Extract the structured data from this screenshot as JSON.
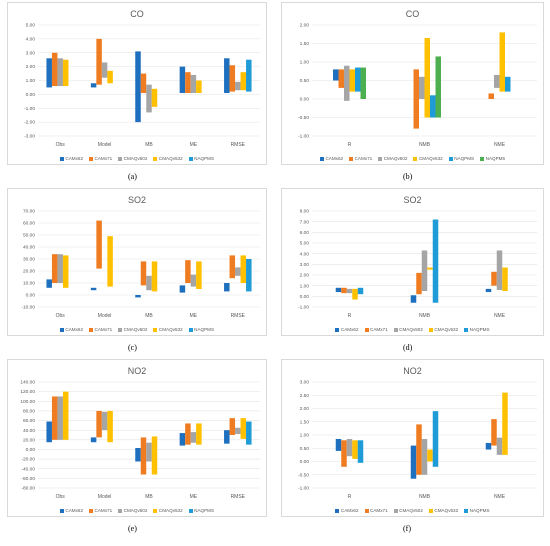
{
  "colors": [
    "#1f6fbf",
    "#f07c21",
    "#a5a5a5",
    "#ffc000",
    "#1f9bd7",
    "#4caf50"
  ],
  "chart_data": [
    {
      "type": "bar",
      "subtype": "floating",
      "title": "CO",
      "label": "(a)",
      "categories": [
        "Obs",
        "Model",
        "MB",
        "ME",
        "RMSE"
      ],
      "ylim": [
        -3,
        5
      ],
      "yticks": [
        -3,
        -2,
        -1,
        0,
        1,
        2,
        3,
        4,
        5
      ],
      "ytick_labels": [
        "-3.00",
        "-2.00",
        "-1.00",
        "0.00",
        "1.00",
        "2.00",
        "3.00",
        "4.00",
        "5.00"
      ],
      "series": [
        {
          "name": "CAMx62",
          "ranges": [
            [
              0.5,
              2.6
            ],
            [
              0.5,
              0.8
            ],
            [
              -2.0,
              3.1
            ],
            [
              0.1,
              2.0
            ],
            [
              0.1,
              2.6
            ]
          ]
        },
        {
          "name": "CAMx71",
          "ranges": [
            [
              0.6,
              3.0
            ],
            [
              0.7,
              4.0
            ],
            [
              0.1,
              1.5
            ],
            [
              0.1,
              1.6
            ],
            [
              0.2,
              2.1
            ]
          ]
        },
        {
          "name": "CMAQv502",
          "ranges": [
            [
              0.6,
              2.6
            ],
            [
              1.2,
              2.3
            ],
            [
              -1.3,
              0.7
            ],
            [
              0.1,
              1.4
            ],
            [
              0.3,
              0.9
            ]
          ]
        },
        {
          "name": "CMAQv532",
          "ranges": [
            [
              0.6,
              2.5
            ],
            [
              0.8,
              1.7
            ],
            [
              -0.9,
              0.4
            ],
            [
              0.1,
              1.0
            ],
            [
              0.3,
              1.6
            ]
          ]
        },
        {
          "name": "NAQPMS",
          "ranges": [
            null,
            null,
            null,
            null,
            [
              0.2,
              2.5
            ]
          ]
        }
      ],
      "grid": true,
      "legend": "bottom"
    },
    {
      "type": "bar",
      "subtype": "floating",
      "title": "CO",
      "label": "(b)",
      "categories": [
        "R",
        "NMB",
        "NME"
      ],
      "ylim": [
        -1,
        2
      ],
      "yticks": [
        -1,
        -0.5,
        0,
        0.5,
        1,
        1.5,
        2
      ],
      "ytick_labels": [
        "-1.00",
        "-0.50",
        "0.00",
        "0.50",
        "1.00",
        "1.50",
        "2.00"
      ],
      "series": [
        {
          "name": "CAMx62",
          "ranges": [
            [
              0.5,
              0.8
            ],
            null,
            null
          ]
        },
        {
          "name": "CAMx71",
          "ranges": [
            [
              0.3,
              0.8
            ],
            [
              -0.8,
              0.8
            ],
            [
              0.0,
              0.15
            ]
          ]
        },
        {
          "name": "CMAQv502",
          "ranges": [
            [
              -0.05,
              0.9
            ],
            [
              0.0,
              0.6
            ],
            [
              0.3,
              0.65
            ]
          ]
        },
        {
          "name": "CMAQv532",
          "ranges": [
            [
              0.2,
              0.8
            ],
            [
              -0.5,
              1.65
            ],
            [
              0.2,
              1.8
            ]
          ]
        },
        {
          "name": "NAQPMS",
          "ranges": [
            [
              0.2,
              0.85
            ],
            [
              -0.5,
              0.1
            ],
            [
              0.2,
              0.6
            ]
          ]
        },
        {
          "name": "NAQPM5",
          "ranges": [
            [
              0.0,
              0.85
            ],
            [
              -0.5,
              1.15
            ],
            null
          ]
        }
      ],
      "grid": true,
      "legend": "bottom"
    },
    {
      "type": "bar",
      "subtype": "floating",
      "title": "SO2",
      "label": "(c)",
      "categories": [
        "Obs",
        "Model",
        "MB",
        "ME",
        "RMSE"
      ],
      "ylim": [
        -10,
        70
      ],
      "yticks": [
        -10,
        0,
        10,
        20,
        30,
        40,
        50,
        60,
        70
      ],
      "ytick_labels": [
        "-10.00",
        "0.00",
        "10.00",
        "20.00",
        "30.00",
        "40.00",
        "50.00",
        "60.00",
        "70.00"
      ],
      "series": [
        {
          "name": "CAMx62",
          "ranges": [
            [
              6,
              13
            ],
            [
              4,
              6
            ],
            [
              -2,
              0
            ],
            [
              2,
              8
            ],
            [
              3,
              10
            ]
          ]
        },
        {
          "name": "CAMx71",
          "ranges": [
            [
              10,
              34
            ],
            [
              22,
              62
            ],
            [
              8,
              28
            ],
            [
              10,
              29
            ],
            [
              14,
              33
            ]
          ]
        },
        {
          "name": "CMAQv502",
          "ranges": [
            [
              10,
              34
            ],
            null,
            [
              4,
              16
            ],
            [
              7,
              17
            ],
            [
              16,
              23
            ]
          ]
        },
        {
          "name": "CMAQv532",
          "ranges": [
            [
              6,
              33
            ],
            [
              7,
              49
            ],
            [
              3,
              28
            ],
            [
              5,
              28
            ],
            [
              10,
              33
            ]
          ]
        },
        {
          "name": "NAQPMS",
          "ranges": [
            null,
            null,
            null,
            null,
            [
              3,
              30
            ]
          ]
        }
      ],
      "grid": true,
      "legend": "bottom"
    },
    {
      "type": "bar",
      "subtype": "floating",
      "title": "SO2",
      "label": "(d)",
      "categories": [
        "R",
        "NMB",
        "NME"
      ],
      "ylim": [
        -1,
        8
      ],
      "yticks": [
        -1,
        0,
        1,
        2,
        3,
        4,
        5,
        6,
        7,
        8
      ],
      "ytick_labels": [
        "-1.00",
        "0.00",
        "1.00",
        "2.00",
        "3.00",
        "4.00",
        "5.00",
        "6.00",
        "7.00",
        "8.00"
      ],
      "series": [
        {
          "name": "CAMx62",
          "ranges": [
            [
              0.4,
              0.8
            ],
            [
              -0.6,
              0.1
            ],
            [
              0.4,
              0.7
            ]
          ]
        },
        {
          "name": "CAMx71",
          "ranges": [
            [
              0.3,
              0.8
            ],
            [
              0.2,
              2.2
            ],
            [
              1.0,
              2.3
            ]
          ]
        },
        {
          "name": "CMAQv502",
          "ranges": [
            [
              0.3,
              0.7
            ],
            [
              0.5,
              4.3
            ],
            [
              0.6,
              4.3
            ]
          ]
        },
        {
          "name": "CMAQv532",
          "ranges": [
            [
              -0.3,
              0.7
            ],
            [
              2.5,
              2.7
            ],
            [
              0.5,
              2.7
            ]
          ]
        },
        {
          "name": "NAQPMS",
          "ranges": [
            [
              0.2,
              0.8
            ],
            [
              -0.6,
              7.2
            ],
            null
          ]
        }
      ],
      "grid": true,
      "legend": "bottom"
    },
    {
      "type": "bar",
      "subtype": "floating",
      "title": "NO2",
      "label": "(e)",
      "categories": [
        "Obs",
        "Model",
        "MB",
        "ME",
        "RMSE"
      ],
      "ylim": [
        -80,
        140
      ],
      "yticks": [
        -80,
        -60,
        -40,
        -20,
        0,
        20,
        40,
        60,
        80,
        100,
        120,
        140
      ],
      "ytick_labels": [
        "-80.00",
        "-60.00",
        "-40.00",
        "-20.00",
        "0.00",
        "20.00",
        "40.00",
        "60.00",
        "80.00",
        "100.00",
        "120.00",
        "140.00"
      ],
      "series": [
        {
          "name": "CAMx62",
          "ranges": [
            [
              15,
              58
            ],
            [
              15,
              25
            ],
            [
              -25,
              3
            ],
            [
              8,
              34
            ],
            [
              12,
              40
            ]
          ]
        },
        {
          "name": "CAMx71",
          "ranges": [
            [
              20,
              110
            ],
            [
              25,
              80
            ],
            [
              -52,
              25
            ],
            [
              10,
              54
            ],
            [
              30,
              65
            ]
          ]
        },
        {
          "name": "CMAQv502",
          "ranges": [
            [
              20,
              110
            ],
            [
              40,
              78
            ],
            [
              -25,
              14
            ],
            [
              14,
              36
            ],
            [
              32,
              45
            ]
          ]
        },
        {
          "name": "CMAQv532",
          "ranges": [
            [
              20,
              120
            ],
            [
              15,
              80
            ],
            [
              -52,
              27
            ],
            [
              10,
              54
            ],
            [
              22,
              65
            ]
          ]
        },
        {
          "name": "NAQPMS",
          "ranges": [
            null,
            null,
            null,
            null,
            [
              10,
              58
            ]
          ]
        }
      ],
      "grid": true,
      "legend": "bottom"
    },
    {
      "type": "bar",
      "subtype": "floating",
      "title": "NO2",
      "label": "(f)",
      "categories": [
        "R",
        "NMB",
        "NME"
      ],
      "ylim": [
        -1,
        3
      ],
      "yticks": [
        -1,
        -0.5,
        0,
        0.5,
        1,
        1.5,
        2,
        2.5,
        3
      ],
      "ytick_labels": [
        "-1.00",
        "-0.50",
        "0.00",
        "0.50",
        "1.00",
        "1.50",
        "2.00",
        "2.50",
        "3.00"
      ],
      "series": [
        {
          "name": "CAMx62",
          "ranges": [
            [
              0.4,
              0.85
            ],
            [
              -0.65,
              0.6
            ],
            [
              0.45,
              0.7
            ]
          ]
        },
        {
          "name": "CAMx71",
          "ranges": [
            [
              -0.2,
              0.8
            ],
            [
              -0.5,
              1.4
            ],
            [
              0.6,
              1.6
            ]
          ]
        },
        {
          "name": "CMAQv502",
          "ranges": [
            [
              0.2,
              0.85
            ],
            [
              -0.5,
              0.85
            ],
            [
              0.25,
              0.9
            ]
          ]
        },
        {
          "name": "CMAQv532",
          "ranges": [
            [
              0.1,
              0.8
            ],
            [
              0.0,
              0.45
            ],
            [
              0.25,
              2.6
            ]
          ]
        },
        {
          "name": "NAQPMS",
          "ranges": [
            [
              -0.05,
              0.8
            ],
            [
              -0.2,
              1.9
            ],
            null
          ]
        }
      ],
      "grid": true,
      "legend": "bottom"
    }
  ]
}
